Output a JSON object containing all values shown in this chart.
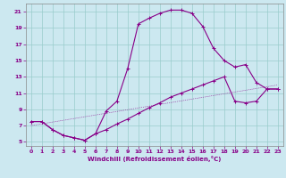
{
  "xlabel": "Windchill (Refroidissement éolien,°C)",
  "bg_color": "#cce8f0",
  "line_color": "#880088",
  "grid_color": "#99cccc",
  "xlim": [
    -0.5,
    23.5
  ],
  "ylim": [
    4.5,
    22.0
  ],
  "yticks": [
    5,
    7,
    9,
    11,
    13,
    15,
    17,
    19,
    21
  ],
  "xticks": [
    0,
    1,
    2,
    3,
    4,
    5,
    6,
    7,
    8,
    9,
    10,
    11,
    12,
    13,
    14,
    15,
    16,
    17,
    18,
    19,
    20,
    21,
    22,
    23
  ],
  "line1_x": [
    0,
    1,
    2,
    3,
    4,
    5,
    6,
    7,
    8,
    9,
    10,
    11,
    12,
    13,
    14,
    15,
    16,
    17,
    18,
    19,
    20,
    21,
    22,
    23
  ],
  "line1_y": [
    7.5,
    7.5,
    6.5,
    5.8,
    5.5,
    5.2,
    6.0,
    8.8,
    10.0,
    14.0,
    19.5,
    20.2,
    20.8,
    21.2,
    21.2,
    20.8,
    19.2,
    16.5,
    15.0,
    14.2,
    14.5,
    12.3,
    11.5,
    11.5
  ],
  "line2_x": [
    0,
    1,
    2,
    3,
    4,
    5,
    6,
    7,
    8,
    9,
    10,
    11,
    12,
    13,
    14,
    15,
    16,
    17,
    18,
    19,
    20,
    21,
    22,
    23
  ],
  "line2_y": [
    7.5,
    7.5,
    6.5,
    5.8,
    5.5,
    5.2,
    6.0,
    6.5,
    7.2,
    7.8,
    8.5,
    9.2,
    9.8,
    10.5,
    11.0,
    11.5,
    12.0,
    12.5,
    13.0,
    10.0,
    9.8,
    10.0,
    11.5,
    11.5
  ],
  "line3_x": [
    0,
    23
  ],
  "line3_y": [
    7.0,
    12.0
  ],
  "marker": "+"
}
